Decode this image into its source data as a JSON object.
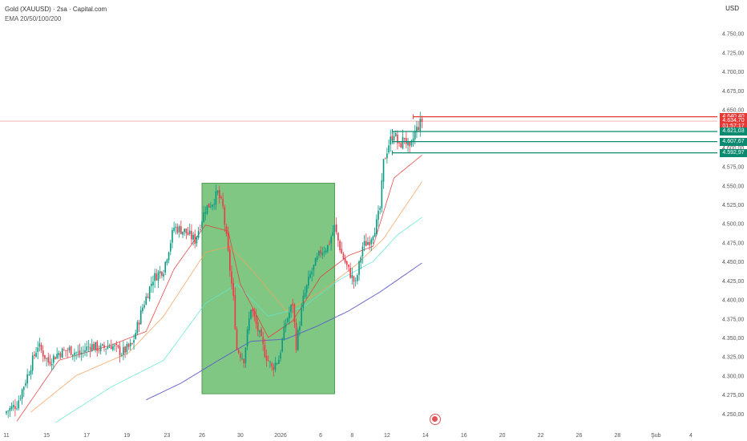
{
  "header": {
    "title": "Gold (XAUUSD) · 2sa · Capital.com",
    "indicator": "EMA 20/50/100/200",
    "currency": "USD"
  },
  "price_tags": [
    {
      "label": "4.640,40",
      "value": 4640.4,
      "color": "#e53935"
    },
    {
      "label": "4.634,70",
      "value": 4634.7,
      "color": "#e53935"
    },
    {
      "label": "01:57:17",
      "value": 4627.6,
      "color": "#e53935"
    },
    {
      "label": "4.621,03",
      "value": 4621.03,
      "color": "#0b8a6f"
    },
    {
      "label": "4.607,67",
      "value": 4607.67,
      "color": "#0b8a6f"
    },
    {
      "label": "4.592,97",
      "value": 4592.97,
      "color": "#0b8a6f"
    }
  ],
  "chart_data": {
    "type": "candlestick",
    "y_axis": {
      "range": [
        4235,
        4775
      ],
      "ticks": [
        4250,
        4275,
        4300,
        4325,
        4350,
        4375,
        4400,
        4425,
        4450,
        4475,
        4500,
        4525,
        4550,
        4575,
        4600,
        4625,
        4650,
        4675,
        4700,
        4725,
        4750
      ],
      "tick_labels": [
        "4.250,00",
        "4.275,00",
        "4.300,00",
        "4.325,00",
        "4.350,00",
        "4.375,00",
        "4.400,00",
        "4.425,00",
        "4.450,00",
        "4.475,00",
        "4.500,00",
        "4.525,00",
        "4.550,00",
        "4.575,00",
        "4.600,00",
        "4.625,00",
        "4.650,00",
        "4.675,00",
        "4.700,00",
        "4.725,00",
        "4.750,00"
      ]
    },
    "x_axis": {
      "tick_labels": [
        "11",
        "15",
        "17",
        "19",
        "23",
        "26",
        "30",
        "2026",
        "6",
        "8",
        "12",
        "14",
        "16",
        "20",
        "22",
        "26",
        "28",
        "Şub",
        "4"
      ],
      "tick_index": [
        0,
        23,
        46,
        69,
        92,
        112,
        134,
        157,
        180,
        198,
        218,
        240,
        262,
        284,
        306,
        328,
        350,
        372,
        392
      ]
    },
    "colors": {
      "up": "#089981",
      "down": "#f23645",
      "ema20": "#e53935",
      "ema50": "#f6a05a",
      "ema100": "#5ee8d4",
      "ema200": "#5b5bc8",
      "box": "#4caf50"
    },
    "highlight_box": {
      "from_index": 112,
      "to_index": 188,
      "y_low": 4276,
      "y_high": 4553
    },
    "horizontal_lines": [
      {
        "value": 4640.4,
        "color": "#e53935",
        "from_index": 233
      },
      {
        "value": 4621.03,
        "color": "#0b8a6f",
        "from_index": 221
      },
      {
        "value": 4607.67,
        "color": "#0b8a6f",
        "from_index": 221
      },
      {
        "value": 4592.97,
        "color": "#0b8a6f",
        "from_index": 221
      }
    ],
    "current_price_line": 4634.7,
    "close_anchors": [
      [
        0,
        4253
      ],
      [
        6,
        4262
      ],
      [
        12,
        4300
      ],
      [
        18,
        4340
      ],
      [
        24,
        4318
      ],
      [
        30,
        4330
      ],
      [
        36,
        4334
      ],
      [
        42,
        4328
      ],
      [
        48,
        4340
      ],
      [
        54,
        4335
      ],
      [
        60,
        4340
      ],
      [
        66,
        4330
      ],
      [
        72,
        4340
      ],
      [
        78,
        4390
      ],
      [
        84,
        4428
      ],
      [
        90,
        4440
      ],
      [
        96,
        4495
      ],
      [
        102,
        4490
      ],
      [
        108,
        4478
      ],
      [
        114,
        4520
      ],
      [
        118,
        4528
      ],
      [
        121,
        4540
      ],
      [
        124,
        4520
      ],
      [
        127,
        4460
      ],
      [
        130,
        4400
      ],
      [
        132,
        4335
      ],
      [
        136,
        4322
      ],
      [
        140,
        4390
      ],
      [
        144,
        4360
      ],
      [
        148,
        4330
      ],
      [
        152,
        4310
      ],
      [
        156,
        4322
      ],
      [
        160,
        4370
      ],
      [
        164,
        4395
      ],
      [
        166,
        4340
      ],
      [
        170,
        4400
      ],
      [
        174,
        4432
      ],
      [
        180,
        4463
      ],
      [
        184,
        4470
      ],
      [
        188,
        4495
      ],
      [
        192,
        4460
      ],
      [
        196,
        4438
      ],
      [
        200,
        4420
      ],
      [
        204,
        4470
      ],
      [
        208,
        4478
      ],
      [
        212,
        4500
      ],
      [
        214,
        4520
      ],
      [
        216,
        4580
      ],
      [
        219,
        4605
      ],
      [
        222,
        4620
      ],
      [
        225,
        4600
      ],
      [
        228,
        4614
      ],
      [
        231,
        4595
      ],
      [
        234,
        4620
      ],
      [
        237,
        4632
      ],
      [
        238,
        4635
      ]
    ],
    "ema_anchors": {
      "ema20": [
        [
          6,
          4240
        ],
        [
          30,
          4320
        ],
        [
          60,
          4340
        ],
        [
          80,
          4358
        ],
        [
          96,
          4440
        ],
        [
          114,
          4498
        ],
        [
          127,
          4490
        ],
        [
          134,
          4420
        ],
        [
          150,
          4350
        ],
        [
          164,
          4372
        ],
        [
          180,
          4430
        ],
        [
          196,
          4458
        ],
        [
          210,
          4470
        ],
        [
          222,
          4560
        ],
        [
          238,
          4590
        ]
      ],
      "ema50": [
        [
          14,
          4252
        ],
        [
          40,
          4300
        ],
        [
          70,
          4330
        ],
        [
          90,
          4378
        ],
        [
          114,
          4462
        ],
        [
          128,
          4470
        ],
        [
          144,
          4430
        ],
        [
          160,
          4385
        ],
        [
          180,
          4410
        ],
        [
          200,
          4445
        ],
        [
          216,
          4480
        ],
        [
          238,
          4555
        ]
      ],
      "ema100": [
        [
          28,
          4238
        ],
        [
          60,
          4285
        ],
        [
          90,
          4320
        ],
        [
          114,
          4395
        ],
        [
          132,
          4420
        ],
        [
          150,
          4378
        ],
        [
          170,
          4390
        ],
        [
          190,
          4425
        ],
        [
          210,
          4450
        ],
        [
          224,
          4485
        ],
        [
          238,
          4508
        ]
      ],
      "ema200": [
        [
          80,
          4268
        ],
        [
          100,
          4290
        ],
        [
          120,
          4318
        ],
        [
          140,
          4345
        ],
        [
          160,
          4348
        ],
        [
          178,
          4365
        ],
        [
          196,
          4385
        ],
        [
          214,
          4410
        ],
        [
          238,
          4448
        ]
      ]
    }
  }
}
